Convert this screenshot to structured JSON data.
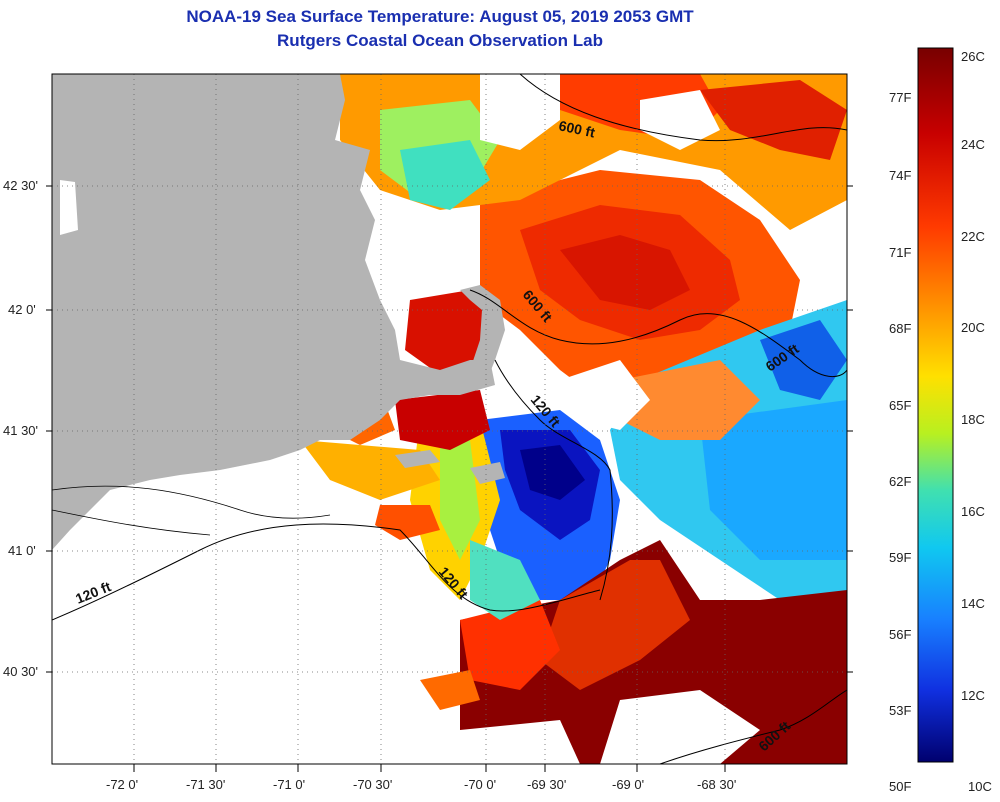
{
  "title": {
    "line1": "NOAA-19 Sea Surface Temperature:  August 05, 2019 2053 GMT",
    "line2": "Rutgers Coastal Ocean Observation Lab"
  },
  "map": {
    "lat_labels": [
      "42 30'",
      "42 0'",
      "41 30'",
      "41 0'",
      "40 30'"
    ],
    "lon_labels": [
      "-72 0'",
      "-71 30'",
      "-71 0'",
      "-70 30'",
      "-70 0'",
      "-69 30'",
      "-69 0'",
      "-68 30'"
    ],
    "contour_labels": [
      "600 ft",
      "600 ft",
      "600 ft",
      "120 ft",
      "120 ft",
      "120 ft",
      "600 ft"
    ]
  },
  "colorbar": {
    "celsius_labels": [
      "26C",
      "24C",
      "22C",
      "20C",
      "18C",
      "16C",
      "14C",
      "12C",
      "10C"
    ],
    "fahrenheit_labels": [
      "77F",
      "74F",
      "71F",
      "68F",
      "65F",
      "62F",
      "59F",
      "56F",
      "53F",
      "50F"
    ],
    "colors": [
      "#7a0000",
      "#c80000",
      "#ff3a00",
      "#ff8c00",
      "#ffd400",
      "#c8f000",
      "#5ee08c",
      "#14d2e6",
      "#1ea0ff",
      "#1450ff",
      "#0a0ab4",
      "#000078"
    ]
  }
}
